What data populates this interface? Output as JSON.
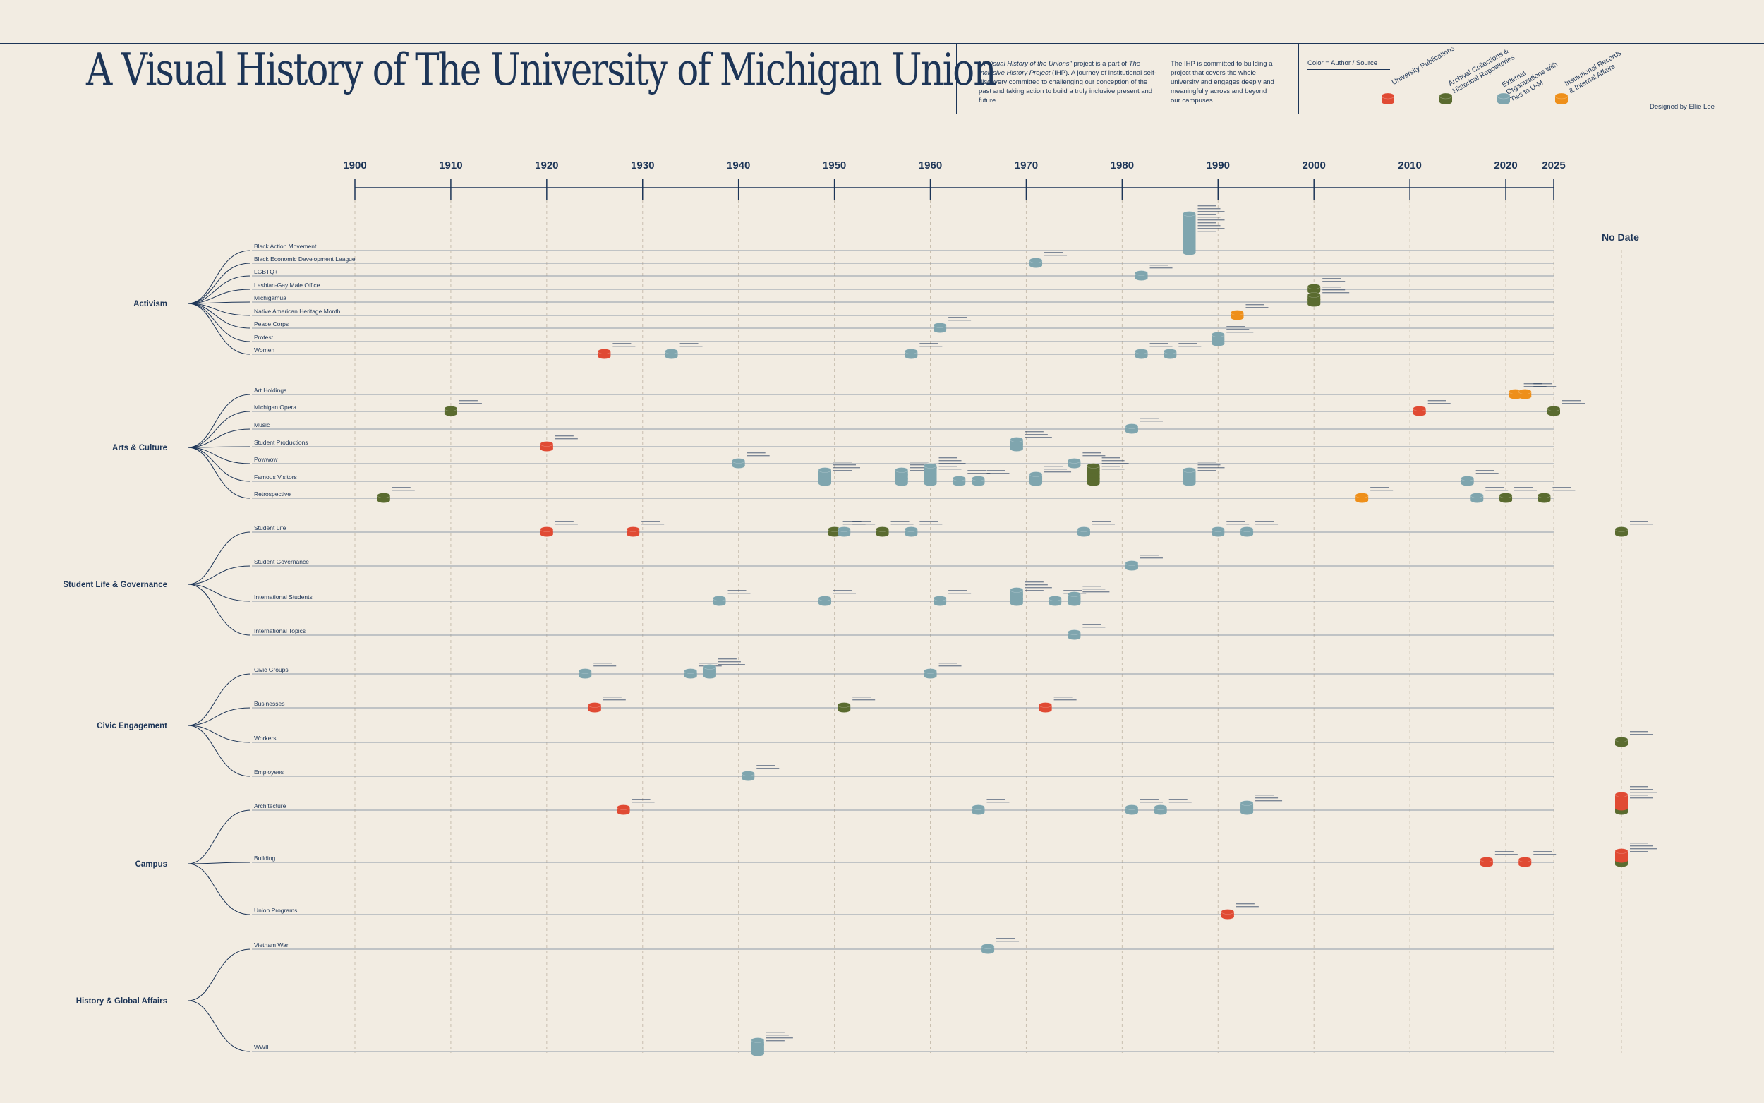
{
  "header": {
    "title": "A Visual History of The University of Michigan Union",
    "desc1_italic": "\"A Visual History of the Unions\"",
    "desc1_a": " project is a part of ",
    "desc1_italic2": "The Inclusive History Project",
    "desc1_b": " (IHP). A journey of institutional self-discovery committed to challenging our conception of the past and taking action to build a truly inclusive present and future.",
    "desc2": "The IHP is committed to building a project that covers the whole university and engages deeply and meaningfully across and beyond our campuses.",
    "designed_by": "Designed by Ellie Lee"
  },
  "legend": {
    "title": "Color = Author / Source",
    "items": [
      {
        "label": "University Publications",
        "color": "#e04a33"
      },
      {
        "label": "Archival Collections & Historical Repositories",
        "color": "#5a6b2f"
      },
      {
        "label": "External Organizations with Ties to U-M",
        "color": "#7fa5ae"
      },
      {
        "label": "Institutional Records & Internal Affairs",
        "color": "#ee8f1a"
      }
    ]
  },
  "chart_data": {
    "type": "timeline",
    "axis_ticks": [
      "1900",
      "1910",
      "1920",
      "1930",
      "1940",
      "1950",
      "1960",
      "1970",
      "1980",
      "1990",
      "2000",
      "2010",
      "2020",
      "2025"
    ],
    "no_date_label": "No Date",
    "categories": [
      {
        "name": "Activism",
        "rows": [
          "Black Action Movement",
          "Black Economic Development League",
          "LGBTQ+",
          "Lesbian-Gay Male Office",
          "Michigamua",
          "Native American Heritage Month",
          "Peace Corps",
          "Protest",
          "Women"
        ]
      },
      {
        "name": "Arts & Culture",
        "rows": [
          "Art Holdings",
          "Michigan Opera",
          "Music",
          "Student Productions",
          "Powwow",
          "Famous Visitors",
          "Retrospective"
        ]
      },
      {
        "name": "Student Life & Governance",
        "rows": [
          "Student Life",
          "Student Governance",
          "International Students",
          "International Topics"
        ]
      },
      {
        "name": "Civic Engagement",
        "rows": [
          "Civic Groups",
          "Businesses",
          "Workers",
          "Employees"
        ]
      },
      {
        "name": "Campus",
        "rows": [
          "Architecture",
          "Building",
          "Union Programs"
        ]
      },
      {
        "name": "History & Global Affairs",
        "rows": [
          "Vietnam War",
          "WWII"
        ]
      }
    ],
    "events": [
      {
        "row": "Black Action Movement",
        "year": 1987,
        "source": "ext",
        "count": 9
      },
      {
        "row": "Black Economic Development League",
        "year": 1971,
        "source": "ext",
        "count": 1
      },
      {
        "row": "LGBTQ+",
        "year": 1982,
        "source": "ext",
        "count": 1
      },
      {
        "row": "Lesbian-Gay Male Office",
        "year": 2000,
        "source": "arch",
        "count": 1
      },
      {
        "row": "Michigamua",
        "year": 2000,
        "source": "arch",
        "count": 2
      },
      {
        "row": "Native American Heritage Month",
        "year": 1992,
        "source": "inst",
        "count": 1
      },
      {
        "row": "Peace Corps",
        "year": 1961,
        "source": "ext",
        "count": 1
      },
      {
        "row": "Protest",
        "year": 1990,
        "source": "ext",
        "count": 2
      },
      {
        "row": "Women",
        "year": 1926,
        "source": "univ",
        "count": 1
      },
      {
        "row": "Women",
        "year": 1933,
        "source": "ext",
        "count": 1
      },
      {
        "row": "Women",
        "year": 1958,
        "source": "ext",
        "count": 1
      },
      {
        "row": "Women",
        "year": 1982,
        "source": "ext",
        "count": 1
      },
      {
        "row": "Women",
        "year": 1985,
        "source": "ext",
        "count": 1
      },
      {
        "row": "Art Holdings",
        "year": 2021,
        "source": "inst",
        "count": 1
      },
      {
        "row": "Art Holdings",
        "year": 2022,
        "source": "inst",
        "count": 1
      },
      {
        "row": "Michigan Opera",
        "year": 1910,
        "source": "arch",
        "count": 1
      },
      {
        "row": "Michigan Opera",
        "year": 2011,
        "source": "univ",
        "count": 1
      },
      {
        "row": "Michigan Opera",
        "year": 2025,
        "source": "arch",
        "count": 1
      },
      {
        "row": "Music",
        "year": 1981,
        "source": "ext",
        "count": 1
      },
      {
        "row": "Student Productions",
        "year": 1920,
        "source": "univ",
        "count": 1
      },
      {
        "row": "Student Productions",
        "year": 1969,
        "source": "ext",
        "count": 2
      },
      {
        "row": "Powwow",
        "year": 1940,
        "source": "ext",
        "count": 1
      },
      {
        "row": "Powwow",
        "year": 1975,
        "source": "ext",
        "count": 1
      },
      {
        "row": "Famous Visitors",
        "year": 1949,
        "source": "ext",
        "count": 3
      },
      {
        "row": "Famous Visitors",
        "year": 1957,
        "source": "ext",
        "count": 3
      },
      {
        "row": "Famous Visitors",
        "year": 1960,
        "source": "ext",
        "count": 4
      },
      {
        "row": "Famous Visitors",
        "year": 1963,
        "source": "ext",
        "count": 1
      },
      {
        "row": "Famous Visitors",
        "year": 1965,
        "source": "ext",
        "count": 1
      },
      {
        "row": "Famous Visitors",
        "year": 1971,
        "source": "ext",
        "count": 2
      },
      {
        "row": "Famous Visitors",
        "year": 1977,
        "source": "arch",
        "count": 4
      },
      {
        "row": "Famous Visitors",
        "year": 1987,
        "source": "ext",
        "count": 3
      },
      {
        "row": "Famous Visitors",
        "year": 2016,
        "source": "ext",
        "count": 1
      },
      {
        "row": "Retrospective",
        "year": 1903,
        "source": "arch",
        "count": 1
      },
      {
        "row": "Retrospective",
        "year": 2005,
        "source": "inst",
        "count": 1
      },
      {
        "row": "Retrospective",
        "year": 2017,
        "source": "ext",
        "count": 1
      },
      {
        "row": "Retrospective",
        "year": 2020,
        "source": "arch",
        "count": 1
      },
      {
        "row": "Retrospective",
        "year": 2024,
        "source": "arch",
        "count": 1
      },
      {
        "row": "Student Life",
        "year": 1920,
        "source": "univ",
        "count": 1
      },
      {
        "row": "Student Life",
        "year": 1929,
        "source": "univ",
        "count": 1
      },
      {
        "row": "Student Life",
        "year": 1950,
        "source": "arch",
        "count": 1
      },
      {
        "row": "Student Life",
        "year": 1951,
        "source": "ext",
        "count": 1
      },
      {
        "row": "Student Life",
        "year": 1955,
        "source": "arch",
        "count": 1
      },
      {
        "row": "Student Life",
        "year": 1958,
        "source": "ext",
        "count": 1
      },
      {
        "row": "Student Life",
        "year": 1976,
        "source": "ext",
        "count": 1
      },
      {
        "row": "Student Life",
        "year": 1990,
        "source": "ext",
        "count": 1
      },
      {
        "row": "Student Life",
        "year": 1993,
        "source": "ext",
        "count": 1
      },
      {
        "row": "Student Governance",
        "year": 1981,
        "source": "ext",
        "count": 1
      },
      {
        "row": "International Students",
        "year": 1938,
        "source": "ext",
        "count": 1
      },
      {
        "row": "International Students",
        "year": 1949,
        "source": "ext",
        "count": 1
      },
      {
        "row": "International Students",
        "year": 1961,
        "source": "ext",
        "count": 1
      },
      {
        "row": "International Students",
        "year": 1969,
        "source": "ext",
        "count": 3
      },
      {
        "row": "International Students",
        "year": 1973,
        "source": "ext",
        "count": 1
      },
      {
        "row": "International Students",
        "year": 1975,
        "source": "ext",
        "count": 2
      },
      {
        "row": "International Topics",
        "year": 1975,
        "source": "ext",
        "count": 1
      },
      {
        "row": "Civic Groups",
        "year": 1924,
        "source": "ext",
        "count": 1
      },
      {
        "row": "Civic Groups",
        "year": 1935,
        "source": "ext",
        "count": 1
      },
      {
        "row": "Civic Groups",
        "year": 1937,
        "source": "ext",
        "count": 2
      },
      {
        "row": "Civic Groups",
        "year": 1960,
        "source": "ext",
        "count": 1
      },
      {
        "row": "Businesses",
        "year": 1925,
        "source": "univ",
        "count": 1
      },
      {
        "row": "Businesses",
        "year": 1951,
        "source": "arch",
        "count": 1
      },
      {
        "row": "Businesses",
        "year": 1972,
        "source": "univ",
        "count": 1
      },
      {
        "row": "Employees",
        "year": 1941,
        "source": "ext",
        "count": 1
      },
      {
        "row": "Architecture",
        "year": 1928,
        "source": "univ",
        "count": 1
      },
      {
        "row": "Architecture",
        "year": 1965,
        "source": "ext",
        "count": 1
      },
      {
        "row": "Architecture",
        "year": 1981,
        "source": "ext",
        "count": 1
      },
      {
        "row": "Architecture",
        "year": 1984,
        "source": "ext",
        "count": 1
      },
      {
        "row": "Architecture",
        "year": 1993,
        "source": "ext",
        "count": 2
      },
      {
        "row": "Building",
        "year": 2018,
        "source": "univ",
        "count": 1
      },
      {
        "row": "Building",
        "year": 2022,
        "source": "univ",
        "count": 1
      },
      {
        "row": "Union Programs",
        "year": 1991,
        "source": "univ",
        "count": 1
      },
      {
        "row": "Vietnam War",
        "year": 1966,
        "source": "ext",
        "count": 1
      },
      {
        "row": "WWII",
        "year": 1942,
        "source": "ext",
        "count": 3
      }
    ],
    "no_date_events": [
      {
        "row": "Student Life",
        "source": "arch",
        "count": 1
      },
      {
        "row": "Workers",
        "source": "arch",
        "count": 1
      },
      {
        "row": "Architecture",
        "source": "mixed",
        "count": 4
      },
      {
        "row": "Building",
        "source": "mixed",
        "count": 3
      }
    ]
  }
}
